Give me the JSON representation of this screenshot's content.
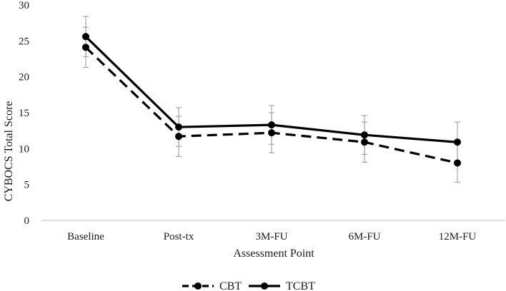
{
  "chart_data": {
    "type": "line",
    "categories": [
      "Baseline",
      "Post-tx",
      "3M-FU",
      "6M-FU",
      "12M-FU"
    ],
    "series": [
      {
        "name": "CBT",
        "style": "dashed",
        "color": "#000000",
        "values": [
          24.1,
          11.7,
          12.2,
          10.9,
          8.0
        ],
        "error": [
          2.8,
          2.8,
          2.8,
          2.8,
          2.7
        ]
      },
      {
        "name": "TCBT",
        "style": "solid",
        "color": "#000000",
        "values": [
          25.6,
          13.0,
          13.3,
          11.9,
          10.9
        ],
        "error": [
          2.8,
          2.7,
          2.7,
          2.7,
          2.8
        ]
      }
    ],
    "title": "",
    "xlabel": "Assessment Point",
    "ylabel": "CYBOCS Total Score",
    "ylim": [
      0,
      30
    ],
    "yticks": [
      "0",
      "5",
      "10",
      "15",
      "20",
      "25",
      "30"
    ],
    "grid": false,
    "error_bar_color": "#a6a6a6",
    "legend_position": "bottom-center"
  }
}
